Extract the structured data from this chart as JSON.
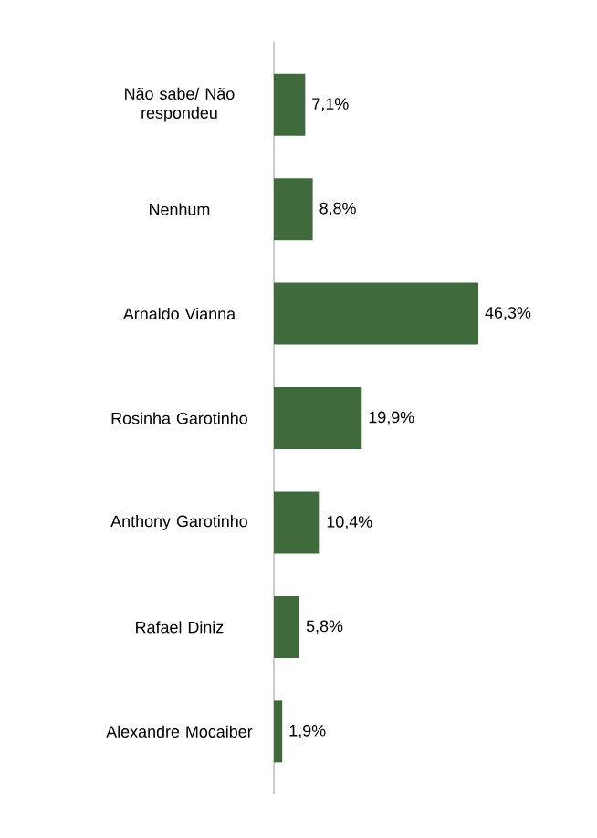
{
  "chart_data": {
    "type": "bar",
    "orientation": "horizontal",
    "categories": [
      "Não sabe/ Não respondeu",
      "Nenhum",
      "Arnaldo Vianna",
      "Rosinha Garotinho",
      "Anthony Garotinho",
      "Rafael Diniz",
      "Alexandre Mocaiber"
    ],
    "values": [
      7.1,
      8.8,
      46.3,
      19.9,
      10.4,
      5.8,
      1.9
    ],
    "value_labels": [
      "7,1%",
      "8,8%",
      "46,3%",
      "19,9%",
      "10,4%",
      "5,8%",
      "1,9%"
    ],
    "color": "#3f6b3c"
  }
}
